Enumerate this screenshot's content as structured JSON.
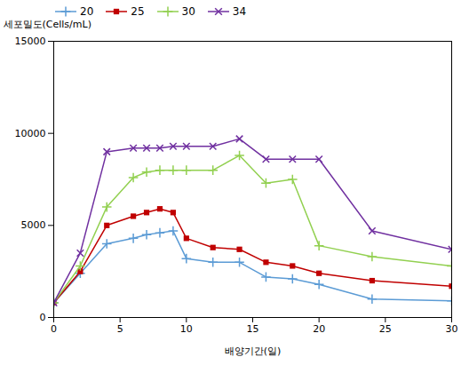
{
  "chart_data": {
    "type": "line",
    "xlabel": "배양기간(일)",
    "ylabel": "세포밀도(Cells/mL)",
    "x": [
      0,
      2,
      4,
      6,
      7,
      8,
      9,
      10,
      12,
      14,
      16,
      18,
      20,
      24,
      30
    ],
    "series": [
      {
        "name": "20",
        "color": "#5b9bd5",
        "marker": "plus",
        "values": [
          800,
          2400,
          4000,
          4300,
          4500,
          4600,
          4700,
          3200,
          3000,
          3000,
          2200,
          2100,
          1800,
          1000,
          900
        ]
      },
      {
        "name": "25",
        "color": "#c00000",
        "marker": "square",
        "values": [
          800,
          2500,
          5000,
          5500,
          5700,
          5900,
          5700,
          4300,
          3800,
          3700,
          3000,
          2800,
          2400,
          2000,
          1700
        ]
      },
      {
        "name": "30",
        "color": "#92d050",
        "marker": "plus",
        "values": [
          800,
          2800,
          6000,
          7600,
          7900,
          8000,
          8000,
          8000,
          8000,
          8800,
          7300,
          7500,
          3900,
          3300,
          2800
        ]
      },
      {
        "name": "34",
        "color": "#7030a0",
        "marker": "x",
        "values": [
          800,
          3500,
          9000,
          9200,
          9200,
          9200,
          9300,
          9300,
          9300,
          9700,
          8600,
          8600,
          8600,
          4700,
          3700
        ]
      }
    ],
    "xlim": [
      0,
      30
    ],
    "ylim": [
      0,
      15000
    ],
    "xticks": [
      0,
      5,
      10,
      15,
      20,
      25,
      30
    ],
    "yticks": [
      0,
      5000,
      10000,
      15000
    ],
    "legend": "upper left",
    "grid": false
  }
}
